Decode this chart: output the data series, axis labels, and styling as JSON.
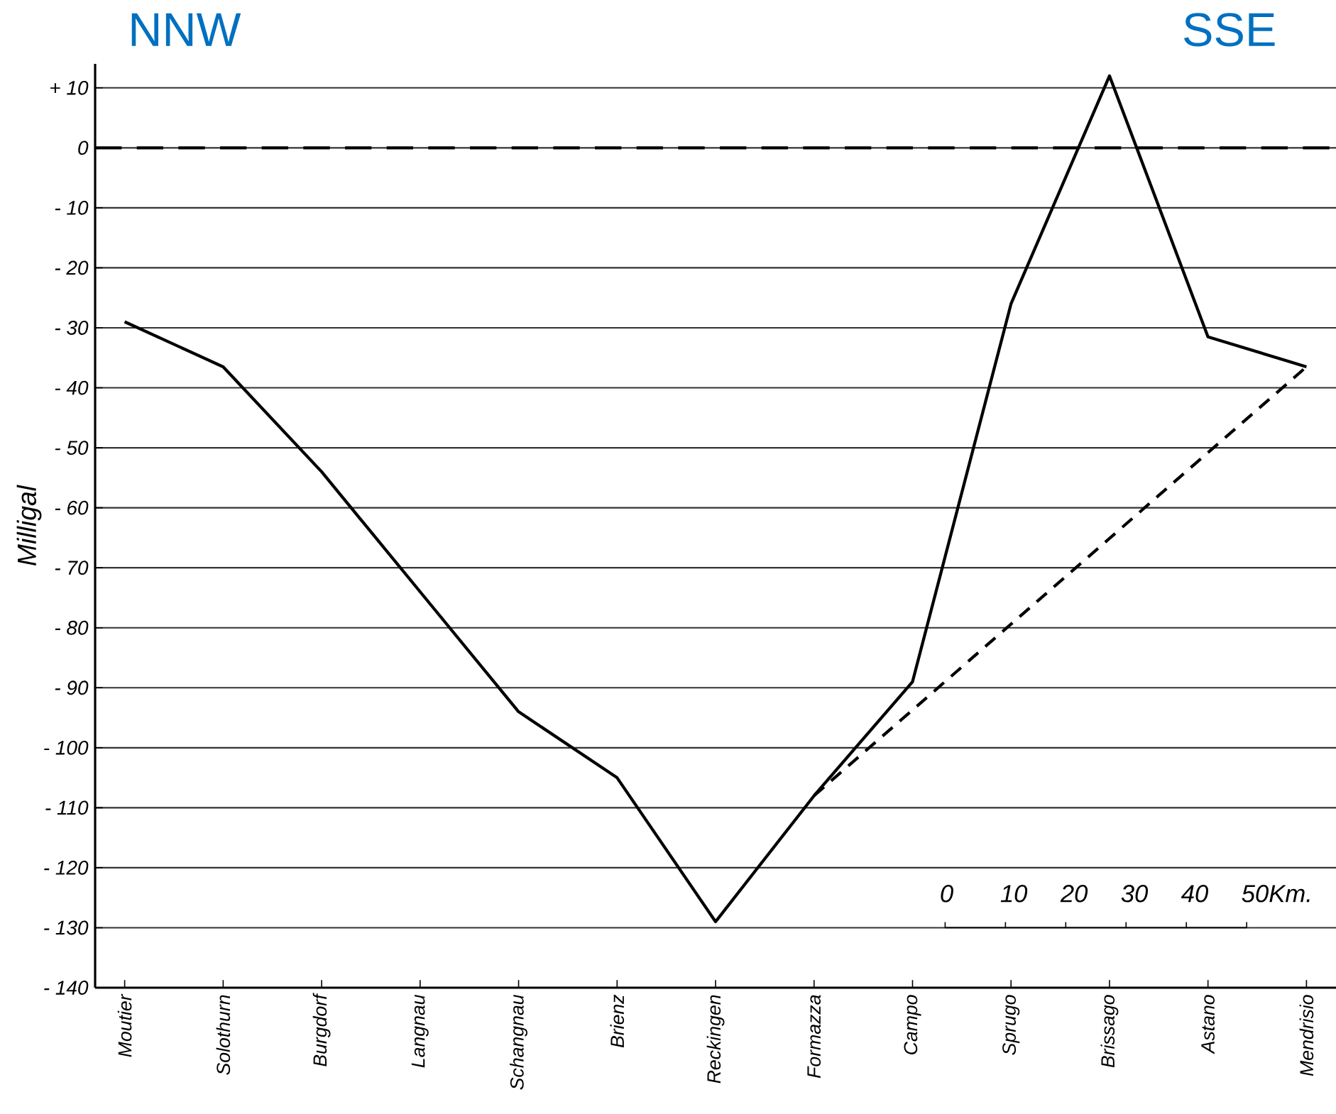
{
  "chart_data": {
    "type": "line",
    "ylabel": "Milligal",
    "categories": [
      "Moutier",
      "Solothurn",
      "Burgdorf",
      "Langnau",
      "Schangnau",
      "Brienz",
      "Reckingen",
      "Formazza",
      "Campo",
      "Sprugo",
      "Brissago",
      "Astano",
      "Mendrisio"
    ],
    "ylim": [
      -140,
      14
    ],
    "yticks": [
      {
        "value": 10,
        "label": "+ 10"
      },
      0,
      {
        "value": -10,
        "label": "- 10"
      },
      {
        "value": -20,
        "label": "- 20"
      },
      {
        "value": -30,
        "label": "- 30"
      },
      {
        "value": -40,
        "label": "- 40"
      },
      {
        "value": -50,
        "label": "- 50"
      },
      {
        "value": -60,
        "label": "- 60"
      },
      {
        "value": -70,
        "label": "- 70"
      },
      {
        "value": -80,
        "label": "- 80"
      },
      {
        "value": -90,
        "label": "- 90"
      },
      {
        "value": -100,
        "label": "- 100"
      },
      {
        "value": -110,
        "label": "- 110"
      },
      {
        "value": -120,
        "label": "- 120"
      },
      {
        "value": -130,
        "label": "- 130"
      },
      {
        "value": -140,
        "label": "- 140"
      }
    ],
    "grid": "y",
    "series": [
      {
        "color": "#000000",
        "line_style": "solid",
        "values": [
          -29,
          -36.5,
          -54,
          -74,
          -94,
          -105,
          -129,
          -108,
          -89,
          -26,
          12,
          -31.5,
          -36.5
        ]
      },
      {
        "color": "#000000",
        "line_style": "dashed",
        "values": [
          null,
          null,
          null,
          null,
          null,
          null,
          null,
          -108,
          null,
          null,
          null,
          null,
          -36.5
        ]
      }
    ],
    "ref_lines": [
      {
        "axis": "y",
        "value": 0,
        "line_style": "dashed",
        "color": "#000000"
      }
    ],
    "annotations": [
      "NNW",
      "SSE",
      "0",
      "10",
      "20",
      "30",
      "40",
      "50Km."
    ]
  }
}
